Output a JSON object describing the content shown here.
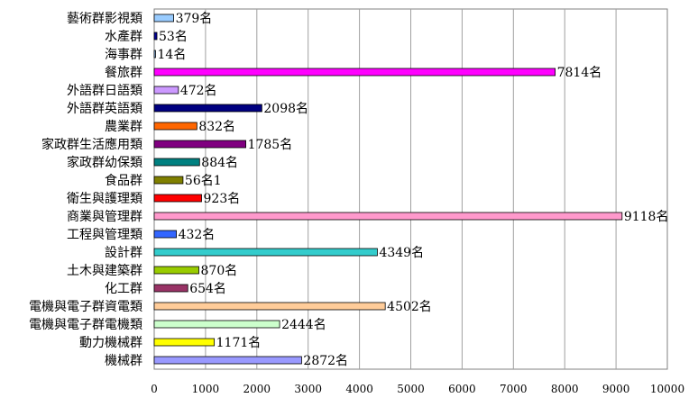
{
  "chart_data": {
    "type": "bar",
    "orientation": "horizontal",
    "categories": [
      "藝術群影視類",
      "水產群",
      "海事群",
      "餐旅群",
      "外語群日語類",
      "外語群英語類",
      "農業群",
      "家政群生活應用類",
      "家政群幼保類",
      "食品群",
      "衛生與護理類",
      "商業與管理群",
      "工程與管理類",
      "設計群",
      "土木與建築群",
      "化工群",
      "電機與電子群資電類",
      "電機與電子群電機類",
      "動力機械群",
      "機械群"
    ],
    "values": [
      379,
      53,
      14,
      7814,
      472,
      2098,
      832,
      1785,
      884,
      561,
      923,
      9118,
      432,
      4349,
      870,
      654,
      4502,
      2444,
      1171,
      2872
    ],
    "value_labels": [
      "379名",
      "53名",
      "14名",
      "7814名",
      "472名",
      "2098名",
      "832名",
      "1785名",
      "884名",
      "56名1",
      "923名",
      "9118名",
      "432名",
      "4349名",
      "870名",
      "654名",
      "4502名",
      "2444名",
      "1171名",
      "2872名"
    ],
    "colors": [
      "#99ccff",
      "#000099",
      "#99ccff",
      "#ff00ff",
      "#cc99ff",
      "#000080",
      "#ff6600",
      "#800080",
      "#008080",
      "#808000",
      "#ff0000",
      "#ff99cc",
      "#3366ff",
      "#33cccc",
      "#99cc00",
      "#993366",
      "#ffcc99",
      "#ccffcc",
      "#ffff00",
      "#9999ff"
    ],
    "x_ticks": [
      "0",
      "1000",
      "2000",
      "3000",
      "4000",
      "5000",
      "6000",
      "7000",
      "8000",
      "9000",
      "10000"
    ],
    "xlim": [
      0,
      10000
    ],
    "grid": "vertical",
    "title": "",
    "xlabel": "",
    "ylabel": ""
  }
}
